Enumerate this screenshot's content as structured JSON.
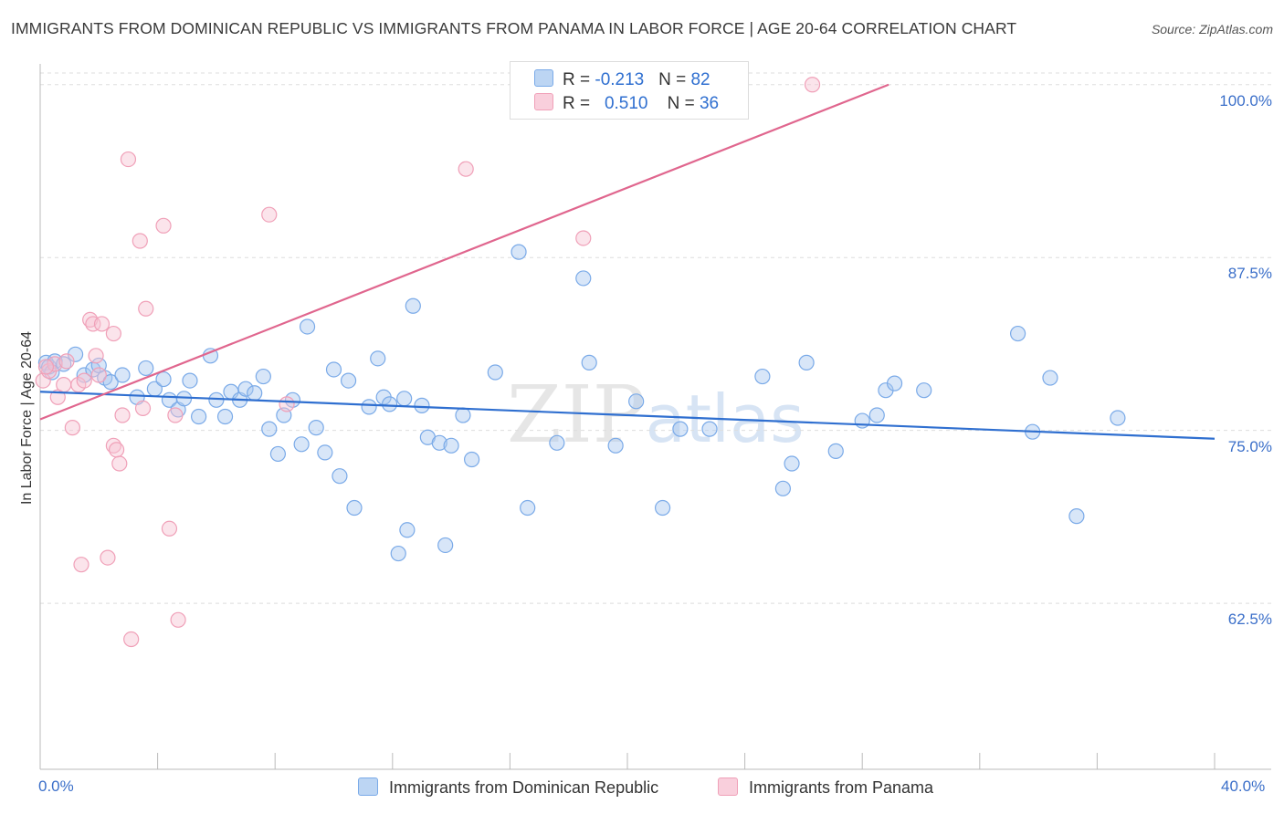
{
  "title": "IMMIGRANTS FROM DOMINICAN REPUBLIC VS IMMIGRANTS FROM PANAMA IN LABOR FORCE | AGE 20-64 CORRELATION CHART",
  "source": "Source: ZipAtlas.com",
  "legend": {
    "row1": {
      "r_label": "R = ",
      "r_value": "-0.213",
      "n_label": "N = ",
      "n_value": "82"
    },
    "row2": {
      "r_label": "R = ",
      "r_value": "0.510",
      "n_label": "N = ",
      "n_value": "36"
    }
  },
  "watermark": {
    "zip": "ZIP",
    "atlas": "atlas"
  },
  "colors": {
    "blue": "#7aaae8",
    "blue_fill": "#a9c8f0",
    "blue_line": "#2f6fd0",
    "pink": "#f0a0b8",
    "pink_fill": "#f7c4d3",
    "pink_line": "#e0668e",
    "tick_text": "#3b6fc9",
    "grid": "#dddddd"
  },
  "chart_data": {
    "type": "scatter",
    "title": "IMMIGRANTS FROM DOMINICAN REPUBLIC VS IMMIGRANTS FROM PANAMA IN LABOR FORCE | AGE 20-64 CORRELATION CHART",
    "xlabel": "",
    "ylabel": "In Labor Force | Age 20-64",
    "xlim": [
      0,
      40
    ],
    "ylim": [
      50.5,
      101.5
    ],
    "x_tick_labels": [
      "0.0%",
      "40.0%"
    ],
    "y_ticks": [
      62.5,
      75.0,
      87.5,
      100.0
    ],
    "y_tick_labels": [
      "62.5%",
      "75.0%",
      "87.5%",
      "100.0%"
    ],
    "grid": true,
    "legend_placement": "top-center",
    "series": [
      {
        "name": "Immigrants from Dominican Republic",
        "color": "#7aaae8",
        "r": -0.213,
        "n": 82,
        "trend": {
          "x": [
            0,
            40
          ],
          "y": [
            77.8,
            74.4
          ]
        },
        "points": [
          [
            0.2,
            79.9
          ],
          [
            0.3,
            79.6
          ],
          [
            0.5,
            80.0
          ],
          [
            0.4,
            79.2
          ],
          [
            0.8,
            79.8
          ],
          [
            1.2,
            80.5
          ],
          [
            1.5,
            79.0
          ],
          [
            1.8,
            79.4
          ],
          [
            2.0,
            79.7
          ],
          [
            2.2,
            78.8
          ],
          [
            2.4,
            78.5
          ],
          [
            2.8,
            79.0
          ],
          [
            3.6,
            79.5
          ],
          [
            3.3,
            77.4
          ],
          [
            3.9,
            78.0
          ],
          [
            4.2,
            78.7
          ],
          [
            4.4,
            77.2
          ],
          [
            4.7,
            76.5
          ],
          [
            4.9,
            77.3
          ],
          [
            5.1,
            78.6
          ],
          [
            5.4,
            76.0
          ],
          [
            5.8,
            80.4
          ],
          [
            6.0,
            77.2
          ],
          [
            6.3,
            76.0
          ],
          [
            6.5,
            77.8
          ],
          [
            6.8,
            77.2
          ],
          [
            7.0,
            78.0
          ],
          [
            7.3,
            77.7
          ],
          [
            7.6,
            78.9
          ],
          [
            7.8,
            75.1
          ],
          [
            8.1,
            73.3
          ],
          [
            8.3,
            76.1
          ],
          [
            8.6,
            77.2
          ],
          [
            8.9,
            74.0
          ],
          [
            9.1,
            82.5
          ],
          [
            9.4,
            75.2
          ],
          [
            9.7,
            73.4
          ],
          [
            10.0,
            79.4
          ],
          [
            10.2,
            71.7
          ],
          [
            10.5,
            78.6
          ],
          [
            10.7,
            69.4
          ],
          [
            11.2,
            76.7
          ],
          [
            11.5,
            80.2
          ],
          [
            11.7,
            77.4
          ],
          [
            11.9,
            76.9
          ],
          [
            12.2,
            66.1
          ],
          [
            12.4,
            77.3
          ],
          [
            12.5,
            67.8
          ],
          [
            12.7,
            84.0
          ],
          [
            13.0,
            76.8
          ],
          [
            13.2,
            74.5
          ],
          [
            13.6,
            74.1
          ],
          [
            13.8,
            66.7
          ],
          [
            14.0,
            73.9
          ],
          [
            14.4,
            76.1
          ],
          [
            14.7,
            72.9
          ],
          [
            15.5,
            79.2
          ],
          [
            16.3,
            87.9
          ],
          [
            16.6,
            69.4
          ],
          [
            17.6,
            74.1
          ],
          [
            18.5,
            86.0
          ],
          [
            18.7,
            79.9
          ],
          [
            19.6,
            73.9
          ],
          [
            20.3,
            77.1
          ],
          [
            21.2,
            69.4
          ],
          [
            21.8,
            75.1
          ],
          [
            22.8,
            75.1
          ],
          [
            24.6,
            78.9
          ],
          [
            25.3,
            70.8
          ],
          [
            25.6,
            72.6
          ],
          [
            26.1,
            79.9
          ],
          [
            27.1,
            73.5
          ],
          [
            28.0,
            75.7
          ],
          [
            28.5,
            76.1
          ],
          [
            28.8,
            77.9
          ],
          [
            29.1,
            78.4
          ],
          [
            30.1,
            77.9
          ],
          [
            33.3,
            82.0
          ],
          [
            33.8,
            74.9
          ],
          [
            34.4,
            78.8
          ],
          [
            35.3,
            68.8
          ],
          [
            36.7,
            75.9
          ]
        ]
      },
      {
        "name": "Immigrants from Panama",
        "color": "#f0a0b8",
        "r": 0.51,
        "n": 36,
        "trend": {
          "x": [
            0,
            28.9
          ],
          "y": [
            75.8,
            100.0
          ]
        },
        "points": [
          [
            0.1,
            78.6
          ],
          [
            0.3,
            79.3
          ],
          [
            0.5,
            79.8
          ],
          [
            0.6,
            77.4
          ],
          [
            0.8,
            78.3
          ],
          [
            0.9,
            80.0
          ],
          [
            1.1,
            75.2
          ],
          [
            1.3,
            78.3
          ],
          [
            1.4,
            65.3
          ],
          [
            1.5,
            78.6
          ],
          [
            1.7,
            83.0
          ],
          [
            1.8,
            82.7
          ],
          [
            1.9,
            80.4
          ],
          [
            2.0,
            79.0
          ],
          [
            2.1,
            82.7
          ],
          [
            2.3,
            65.8
          ],
          [
            2.5,
            82.0
          ],
          [
            2.5,
            73.9
          ],
          [
            2.6,
            73.6
          ],
          [
            2.7,
            72.6
          ],
          [
            2.8,
            76.1
          ],
          [
            3.0,
            94.6
          ],
          [
            3.1,
            59.9
          ],
          [
            3.4,
            88.7
          ],
          [
            3.5,
            76.6
          ],
          [
            3.6,
            83.8
          ],
          [
            4.2,
            89.8
          ],
          [
            4.4,
            67.9
          ],
          [
            4.6,
            76.1
          ],
          [
            4.7,
            61.3
          ],
          [
            7.8,
            90.6
          ],
          [
            8.4,
            76.9
          ],
          [
            14.5,
            93.9
          ],
          [
            18.5,
            88.9
          ],
          [
            26.3,
            100.0
          ],
          [
            0.2,
            79.6
          ]
        ]
      }
    ]
  },
  "bottom_legend": {
    "item1": "Immigrants from Dominican Republic",
    "item2": "Immigrants from Panama"
  }
}
